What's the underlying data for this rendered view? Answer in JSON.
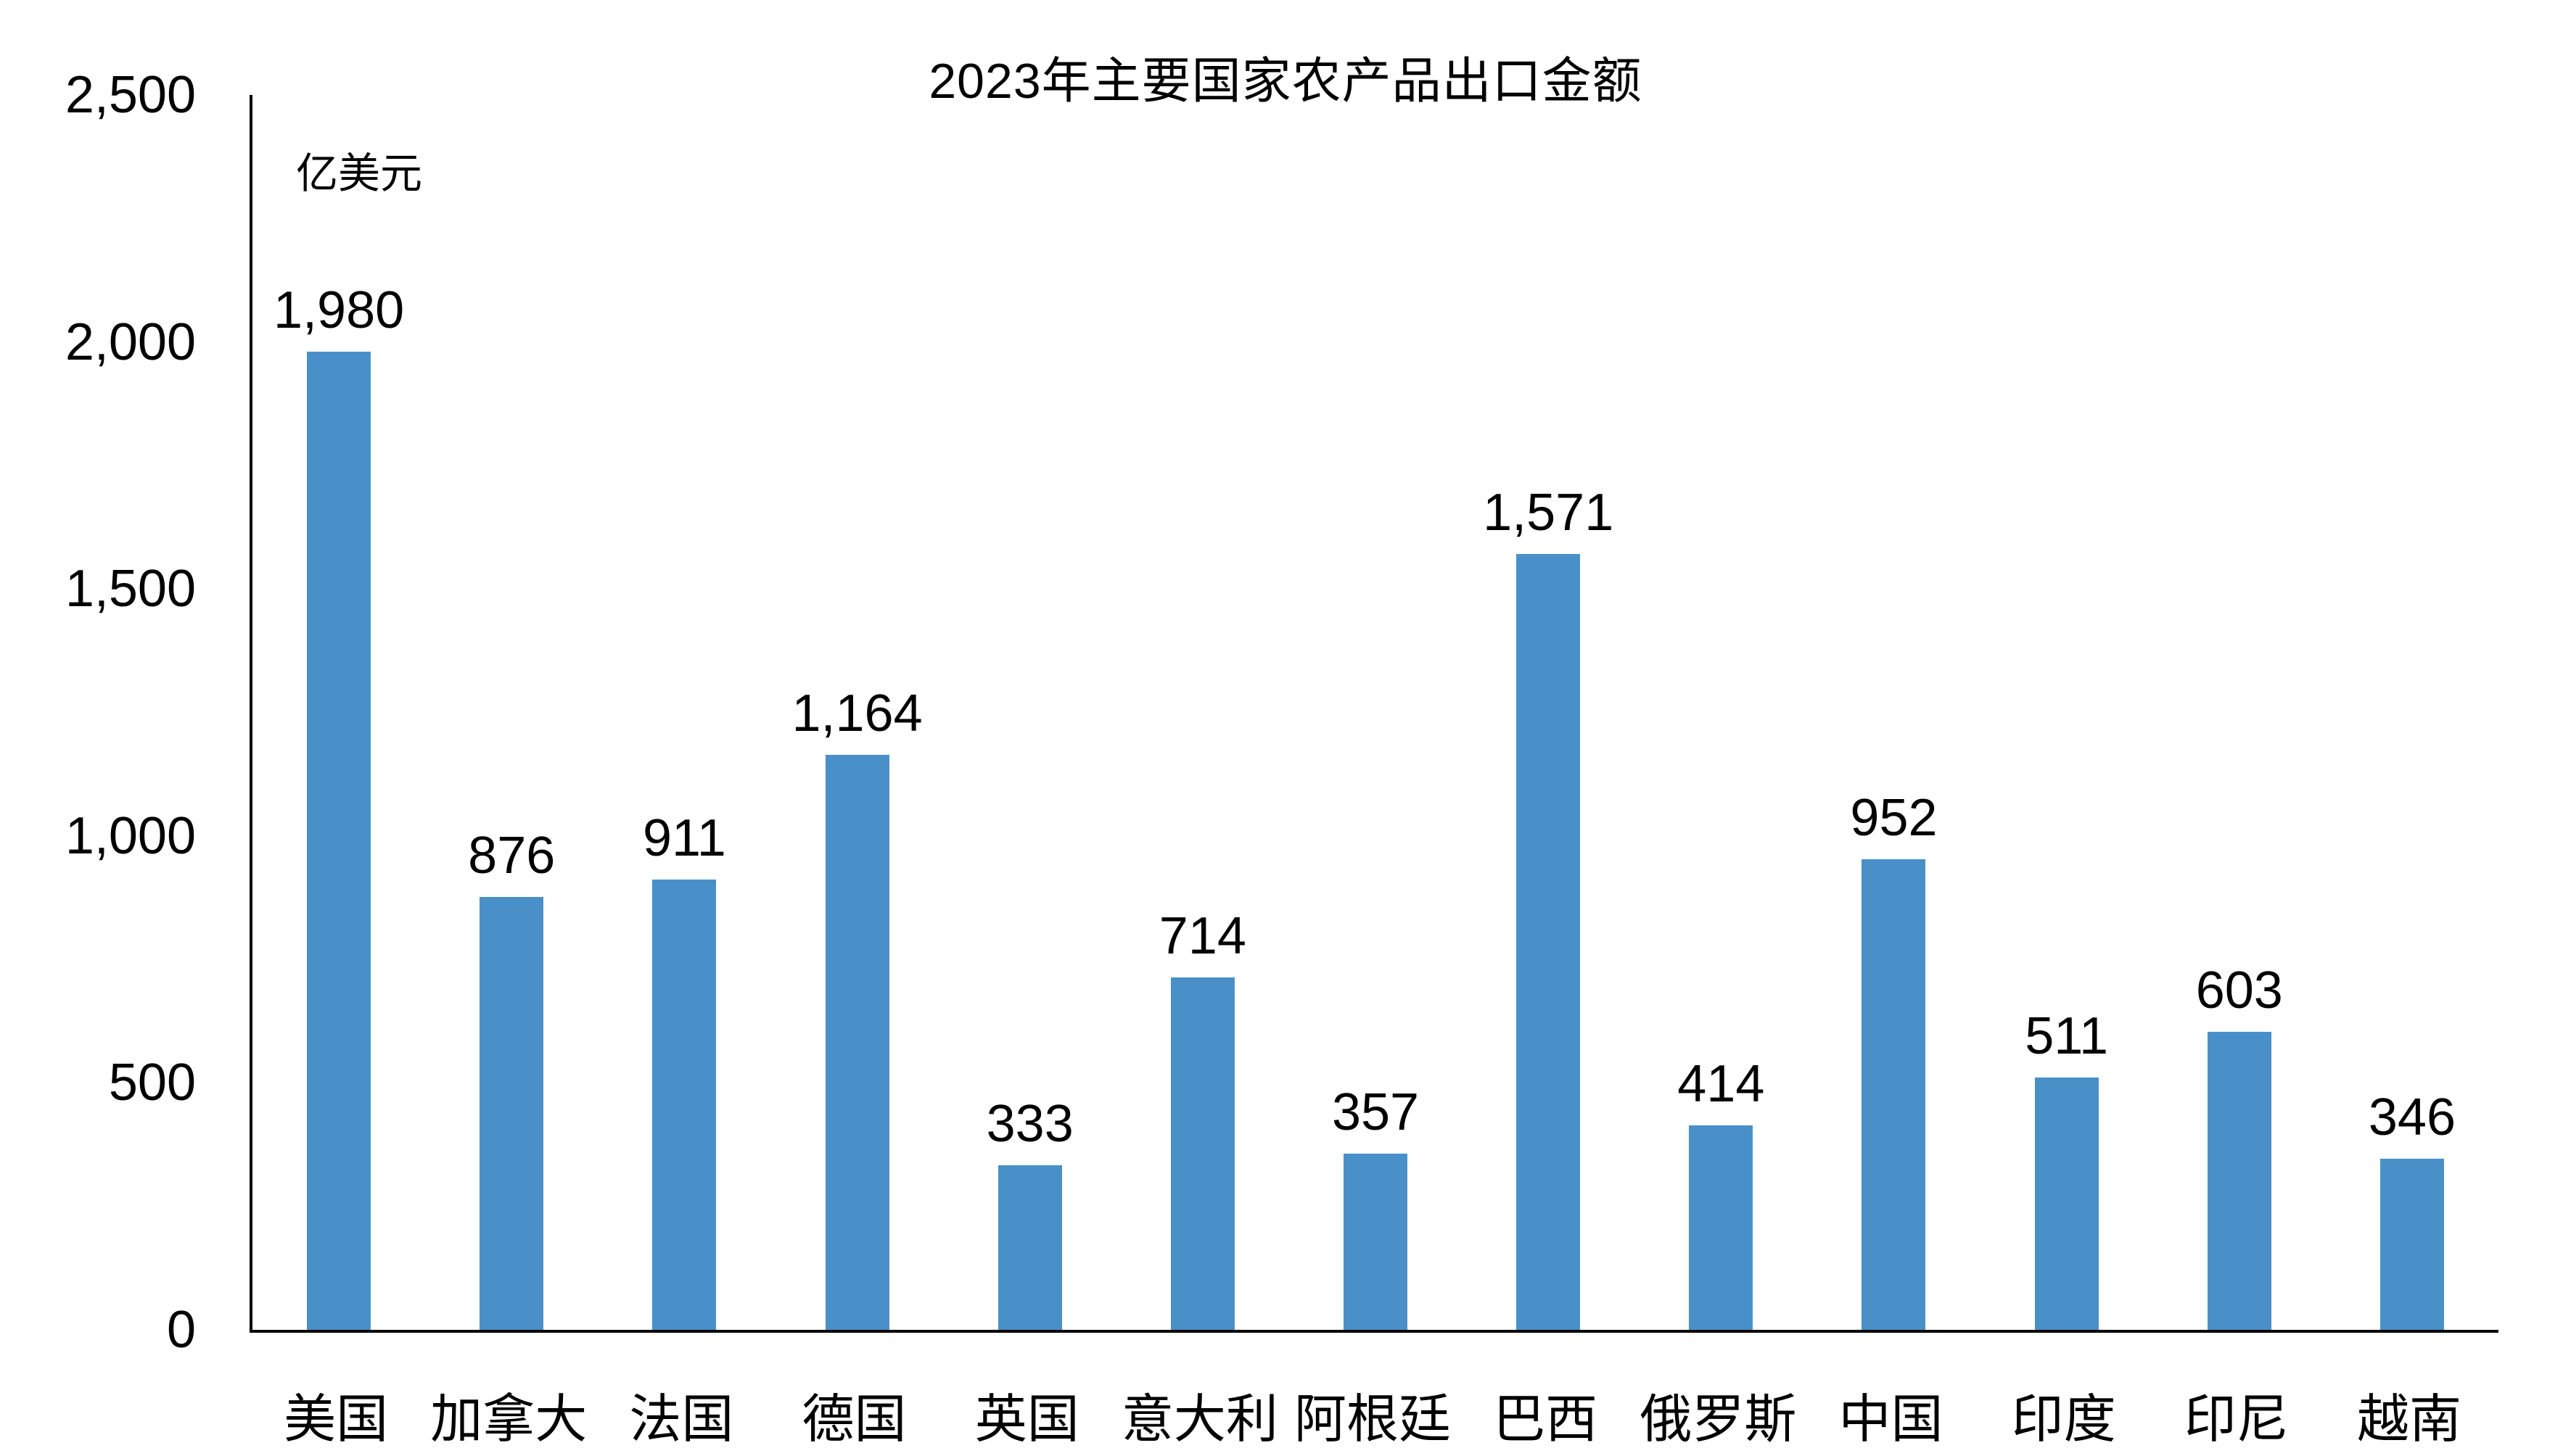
{
  "title": "2023年主要国家农产品出口金额",
  "unit_label": "亿美元",
  "colors": {
    "bar": "#4A90C8",
    "axis": "#000000",
    "text": "#000000",
    "background": "#FFFFFF"
  },
  "chart_data": {
    "type": "bar",
    "title": "2023年主要国家农产品出口金额",
    "xlabel": "",
    "ylabel": "亿美元",
    "ylim": [
      0,
      2500
    ],
    "ytick_interval": 500,
    "yticks": [
      "0",
      "500",
      "1,000",
      "1,500",
      "2,000",
      "2,500"
    ],
    "grid": false,
    "legend": "none",
    "categories": [
      "美国",
      "加拿大",
      "法国",
      "德国",
      "英国",
      "意大利",
      "阿根廷",
      "巴西",
      "俄罗斯",
      "中国",
      "印度",
      "印尼",
      "越南"
    ],
    "values": [
      1980,
      876,
      911,
      1164,
      333,
      714,
      357,
      1571,
      414,
      952,
      511,
      603,
      346
    ],
    "value_labels": [
      "1,980",
      "876",
      "911",
      "1,164",
      "333",
      "714",
      "357",
      "1,571",
      "414",
      "952",
      "511",
      "603",
      "346"
    ]
  }
}
